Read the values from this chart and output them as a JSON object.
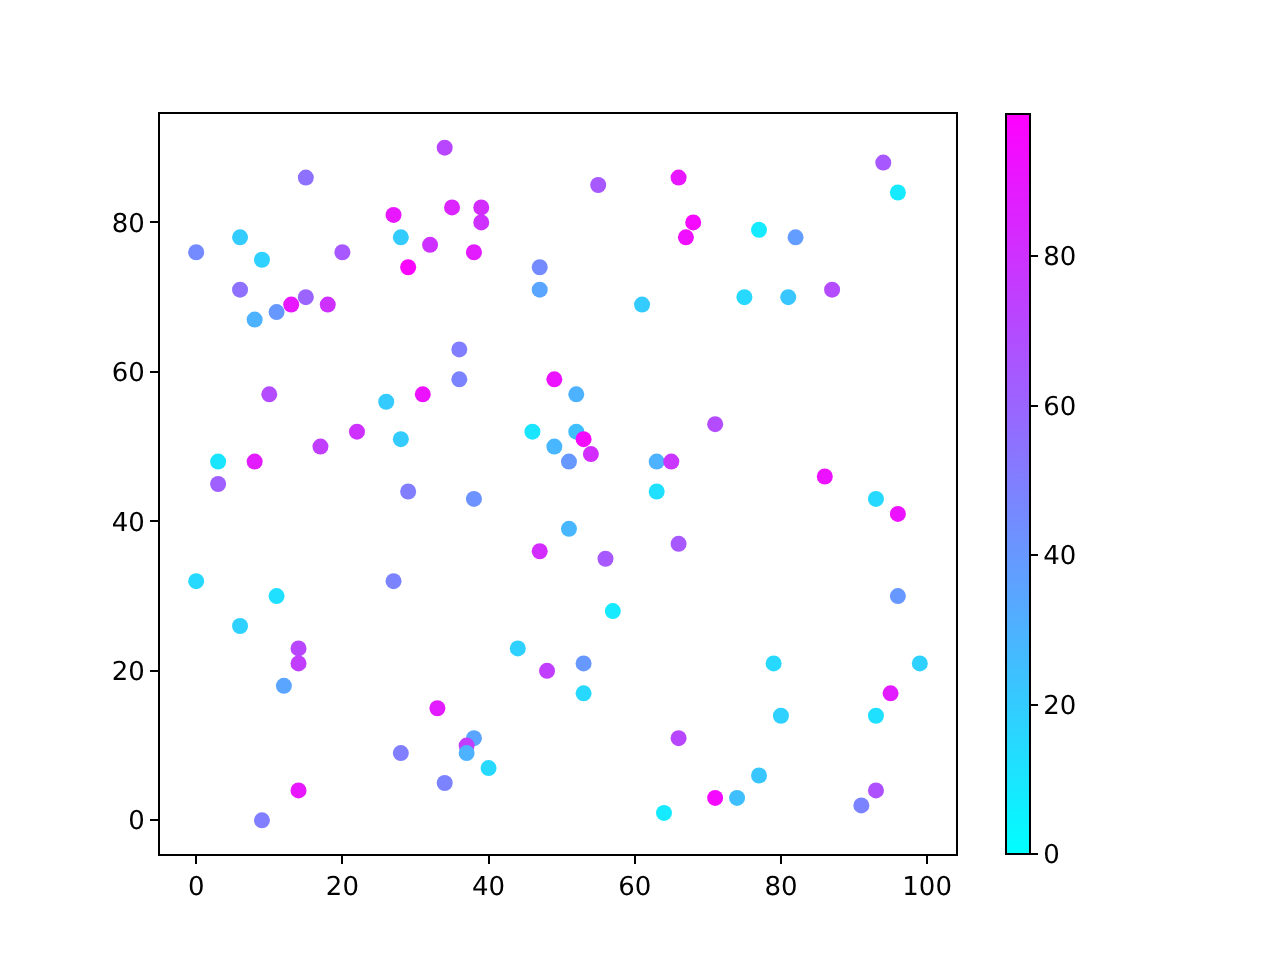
{
  "chart_data": {
    "type": "scatter",
    "x": [
      0,
      6,
      9,
      6,
      15,
      20,
      8,
      11,
      13,
      15,
      18,
      34,
      27,
      28,
      29,
      32,
      35,
      39,
      39,
      38,
      47,
      47,
      36,
      36,
      49,
      10,
      31,
      26,
      22,
      17,
      28,
      46,
      49,
      51,
      3,
      8,
      3,
      55,
      66,
      68,
      67,
      77,
      82,
      94,
      96,
      61,
      75,
      81,
      87,
      52,
      52,
      53,
      54,
      63,
      65,
      71,
      86,
      29,
      38,
      47,
      0,
      11,
      27,
      6,
      14,
      14,
      44,
      48,
      12,
      33,
      38,
      37,
      37,
      40,
      28,
      34,
      14,
      9,
      63,
      93,
      96,
      51,
      66,
      56,
      96,
      57,
      53,
      53,
      79,
      99,
      80,
      93,
      95,
      66,
      77,
      71,
      74,
      64,
      93,
      91
    ],
    "values": [
      76,
      78,
      75,
      71,
      86,
      76,
      67,
      68,
      69,
      70,
      69,
      90,
      81,
      78,
      74,
      77,
      82,
      82,
      80,
      76,
      74,
      71,
      63,
      59,
      59,
      57,
      57,
      56,
      52,
      50,
      51,
      52,
      50,
      48,
      48,
      48,
      45,
      85,
      86,
      80,
      78,
      79,
      78,
      88,
      84,
      69,
      70,
      70,
      71,
      57,
      52,
      51,
      49,
      48,
      48,
      53,
      46,
      44,
      43,
      36,
      32,
      30,
      32,
      26,
      23,
      21,
      23,
      20,
      18,
      15,
      11,
      10,
      9,
      7,
      9,
      5,
      4,
      0,
      44,
      43,
      41,
      39,
      37,
      35,
      30,
      28,
      21,
      17,
      21,
      21,
      14,
      14,
      17,
      11,
      6,
      3,
      3,
      1,
      4,
      2
    ],
    "cvalues": [
      45,
      20,
      18,
      55,
      55,
      65,
      30,
      40,
      90,
      60,
      80,
      72,
      90,
      20,
      97,
      80,
      85,
      82,
      80,
      88,
      45,
      35,
      50,
      48,
      92,
      70,
      92,
      20,
      80,
      75,
      20,
      10,
      28,
      40,
      10,
      88,
      62,
      65,
      90,
      95,
      93,
      8,
      38,
      65,
      8,
      20,
      15,
      22,
      70,
      30,
      25,
      95,
      82,
      30,
      78,
      70,
      92,
      50,
      42,
      82,
      15,
      12,
      48,
      18,
      72,
      75,
      18,
      75,
      35,
      88,
      35,
      75,
      30,
      15,
      50,
      48,
      90,
      50,
      12,
      15,
      92,
      28,
      65,
      65,
      40,
      8,
      40,
      15,
      15,
      18,
      18,
      12,
      88,
      72,
      22,
      95,
      25,
      8,
      68,
      48
    ],
    "clim": [
      0,
      99
    ],
    "cticks": [
      0,
      20,
      40,
      60,
      80
    ],
    "xlim": [
      -4.95,
      103.95
    ],
    "ylim": [
      -4.5,
      94.5
    ],
    "xticks": [
      0,
      20,
      40,
      60,
      80,
      100
    ],
    "yticks": [
      0,
      20,
      40,
      60,
      80
    ],
    "marker": "circle",
    "grid": false
  }
}
